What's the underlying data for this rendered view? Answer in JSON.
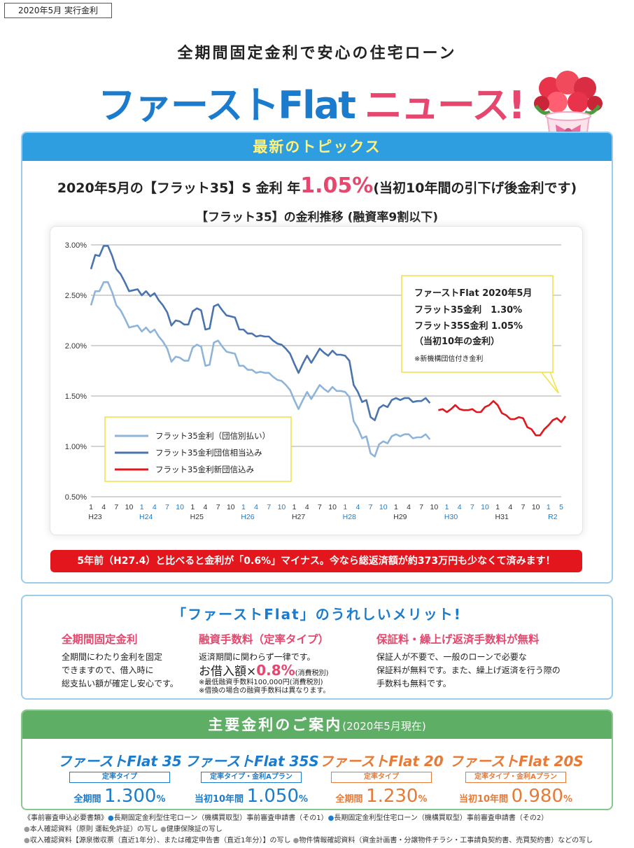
{
  "tag": "2020年5月 実行金利",
  "subtitle": "全期間固定金利で安心の住宅ローン",
  "headline": {
    "blue": "ファーストFlat",
    "pink": "ニュース!"
  },
  "topics": {
    "header": "最新のトピックス",
    "rate_prefix": "2020年5月の【フラット35】S 金利 年",
    "rate_value": "1.05%",
    "rate_suffix": "(当初10年間の引下げ後金利です)",
    "chart_title": "【フラット35】の金利推移 (融資率9割以下)",
    "callout": {
      "line1": "ファーストFlat 2020年5月",
      "line2": "フラット35金利　1.30%",
      "line3": "フラット35S金利  1.05%",
      "line4": "（当初10年の金利）",
      "note": "※新機構団信付き金利"
    },
    "banner": "5年前（H27.4）と比べると金利が「0.6%」マイナス。今なら総返済額が約373万円も少なくて済みます！"
  },
  "chart_data": {
    "type": "line",
    "title": "【フラット35】の金利推移 (融資率9割以下)",
    "ylim": [
      0.5,
      3.0
    ],
    "yticks": [
      "3.00%",
      "2.50%",
      "2.00%",
      "1.50%",
      "1.00%",
      "0.50%"
    ],
    "xticks": [
      {
        "t": "1",
        "blue": false
      },
      {
        "t": "4",
        "blue": false
      },
      {
        "t": "7",
        "blue": false
      },
      {
        "t": "10",
        "blue": false
      },
      {
        "t": "1",
        "blue": true
      },
      {
        "t": "4",
        "blue": true
      },
      {
        "t": "7",
        "blue": true
      },
      {
        "t": "10",
        "blue": true
      },
      {
        "t": "1",
        "blue": false
      },
      {
        "t": "4",
        "blue": false
      },
      {
        "t": "7",
        "blue": false
      },
      {
        "t": "10",
        "blue": false
      },
      {
        "t": "1",
        "blue": true
      },
      {
        "t": "4",
        "blue": true
      },
      {
        "t": "7",
        "blue": true
      },
      {
        "t": "10",
        "blue": true
      },
      {
        "t": "1",
        "blue": false
      },
      {
        "t": "4",
        "blue": false
      },
      {
        "t": "7",
        "blue": false
      },
      {
        "t": "10",
        "blue": false
      },
      {
        "t": "1",
        "blue": true
      },
      {
        "t": "4",
        "blue": true
      },
      {
        "t": "7",
        "blue": true
      },
      {
        "t": "10",
        "blue": true
      },
      {
        "t": "1",
        "blue": false
      },
      {
        "t": "4",
        "blue": false
      },
      {
        "t": "7",
        "blue": false
      },
      {
        "t": "10",
        "blue": false
      },
      {
        "t": "1",
        "blue": true
      },
      {
        "t": "4",
        "blue": true
      },
      {
        "t": "7",
        "blue": true
      },
      {
        "t": "10",
        "blue": true
      },
      {
        "t": "1",
        "blue": false
      },
      {
        "t": "4",
        "blue": false
      },
      {
        "t": "7",
        "blue": false
      },
      {
        "t": "10",
        "blue": false
      },
      {
        "t": "1",
        "blue": true
      },
      {
        "t": "5",
        "blue": true
      }
    ],
    "years": [
      {
        "label": "H23",
        "blue": false,
        "at": 0
      },
      {
        "label": "H24",
        "blue": true,
        "at": 4
      },
      {
        "label": "H25",
        "blue": false,
        "at": 8
      },
      {
        "label": "H26",
        "blue": true,
        "at": 12
      },
      {
        "label": "H27",
        "blue": false,
        "at": 16
      },
      {
        "label": "H28",
        "blue": true,
        "at": 20
      },
      {
        "label": "H29",
        "blue": false,
        "at": 24
      },
      {
        "label": "H30",
        "blue": true,
        "at": 28
      },
      {
        "label": "H31",
        "blue": false,
        "at": 32
      },
      {
        "label": "R2",
        "blue": true,
        "at": 36
      }
    ],
    "series": [
      {
        "name": "フラット35金利（団信別払い）",
        "color": "#8fb4d9",
        "start": 0,
        "values": [
          2.4,
          2.54,
          2.54,
          2.63,
          2.63,
          2.53,
          2.4,
          2.35,
          2.27,
          2.18,
          2.19,
          2.2,
          2.14,
          2.18,
          2.13,
          2.16,
          2.09,
          2.04,
          1.97,
          1.84,
          1.89,
          1.88,
          1.85,
          1.85,
          1.98,
          2.01,
          1.99,
          1.8,
          1.81,
          2.03,
          2.05,
          1.99,
          1.94,
          1.93,
          1.92,
          1.8,
          1.8,
          1.76,
          1.76,
          1.73,
          1.74,
          1.73,
          1.73,
          1.69,
          1.66,
          1.65,
          1.61,
          1.56,
          1.46,
          1.37,
          1.46,
          1.54,
          1.47,
          1.54,
          1.61,
          1.57,
          1.54,
          1.59,
          1.55,
          1.55,
          1.54,
          1.49,
          1.25,
          1.18,
          1.08,
          1.1,
          0.93,
          0.9,
          1.02,
          1.05,
          1.03,
          1.1,
          1.12,
          1.1,
          1.12,
          1.12,
          1.08,
          1.09,
          1.09,
          1.12,
          1.07
        ]
      },
      {
        "name": "フラット35金利団信相当込み",
        "color": "#4a74ae",
        "start": 0,
        "values": [
          2.76,
          2.9,
          2.89,
          2.99,
          2.99,
          2.89,
          2.76,
          2.71,
          2.63,
          2.54,
          2.55,
          2.56,
          2.5,
          2.54,
          2.49,
          2.52,
          2.45,
          2.4,
          2.33,
          2.2,
          2.25,
          2.24,
          2.21,
          2.21,
          2.34,
          2.37,
          2.35,
          2.16,
          2.17,
          2.39,
          2.41,
          2.35,
          2.3,
          2.29,
          2.28,
          2.16,
          2.16,
          2.12,
          2.12,
          2.09,
          2.1,
          2.09,
          2.09,
          2.05,
          2.02,
          2.01,
          1.97,
          1.92,
          1.82,
          1.73,
          1.82,
          1.9,
          1.83,
          1.9,
          1.97,
          1.93,
          1.9,
          1.95,
          1.91,
          1.91,
          1.9,
          1.85,
          1.61,
          1.54,
          1.44,
          1.46,
          1.29,
          1.26,
          1.38,
          1.41,
          1.39,
          1.46,
          1.48,
          1.46,
          1.48,
          1.48,
          1.44,
          1.45,
          1.45,
          1.48,
          1.43
        ]
      },
      {
        "name": "フラット35金利新団信込み",
        "color": "#e3161d",
        "start": 82,
        "values": [
          1.36,
          1.37,
          1.34,
          1.37,
          1.41,
          1.37,
          1.36,
          1.36,
          1.37,
          1.34,
          1.34,
          1.39,
          1.41,
          1.45,
          1.41,
          1.33,
          1.31,
          1.27,
          1.27,
          1.29,
          1.28,
          1.19,
          1.17,
          1.11,
          1.11,
          1.17,
          1.21,
          1.26,
          1.28,
          1.24,
          1.3
        ]
      }
    ]
  },
  "merits": {
    "title": "「ファーストFlat」のうれしいメリット!",
    "m1": {
      "title": "全期間固定金利",
      "l1": "全期間にわたり金利を固定",
      "l2": "できますので、借入時に",
      "l3": "総支払い額が確定し安心です。"
    },
    "m2": {
      "title": "融資手数料（定率タイプ）",
      "l1": "返済期間に関わらず一律です。",
      "big_prefix": "お借入額×",
      "big_value": "0.8%",
      "big_note": "(消費税別)",
      "s1": "※最低融資手数料100,000円(消費税別)",
      "s2": "※借換の場合の融資手数料は異なります。"
    },
    "m3": {
      "title": "保証料・繰上げ返済手数料が無料",
      "l1": "保証人が不要で、一般のローンで必要な",
      "l2": "保証料が無料です。また、繰上げ返済を行う際の",
      "l3": "手数料も無料です。"
    }
  },
  "rates": {
    "header": "主要金利のご案内",
    "header_date": "(2020年5月現在)",
    "products": [
      {
        "name": "ファーストFlat 35",
        "type": "定率タイプ",
        "term": "全期間",
        "rate": "1.300",
        "unit": "%"
      },
      {
        "name": "ファーストFlat 35S",
        "type": "定率タイプ・金利Aプラン",
        "term": "当初10年間",
        "rate": "1.050",
        "unit": "%"
      },
      {
        "name": "ファーストFlat 20",
        "type": "定率タイプ",
        "term": "全期間",
        "rate": "1.230",
        "unit": "%"
      },
      {
        "name": "ファーストFlat 20S",
        "type": "定率タイプ・金利Aプラン",
        "term": "当初10年間",
        "rate": "0.980",
        "unit": "%"
      }
    ]
  },
  "footer": {
    "l1a": "《事前審査申込必要書類》",
    "l1b": "長期固定金利型住宅ローン（機構買取型）事前審査申請書（その1）",
    "l1c": "長期固定金利型住宅ローン（機構買取型）事前審査申請書（その2）",
    "l2a": "本人確認資料（原則 運転免許証）の写し",
    "l2b": "健康保険証の写し",
    "l3a": "収入確認資料【源泉徴収票（直近1年分）、または確定申告書（直近1年分）】の写し",
    "l3b": "物件情報確認資料（資金計画書・分譲物件チラシ・工事請負契約書、売買契約書）などの写し"
  }
}
